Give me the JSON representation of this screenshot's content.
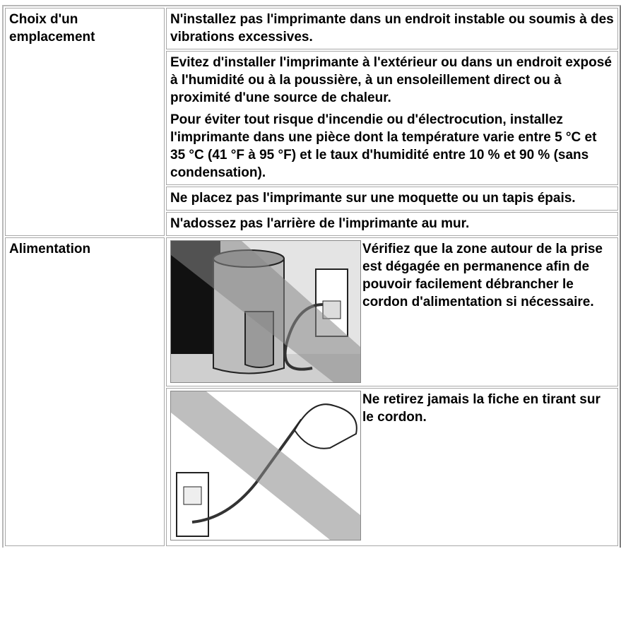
{
  "table": {
    "sections": [
      {
        "heading": "Choix d'un emplacement",
        "items": [
          {
            "paragraphs": [
              "N'installez pas l'imprimante dans un endroit instable ou soumis à des vibrations excessives."
            ]
          },
          {
            "paragraphs": [
              "Evitez d'installer l'imprimante à l'extérieur ou dans un endroit exposé à l'humidité ou à la poussière, à un ensoleillement direct ou à proximité d'une source de chaleur.",
              "Pour éviter tout risque d'incendie ou d'électrocution, installez l'imprimante dans une pièce dont la température varie entre 5 °C et 35 °C (41 °F à 95 °F) et le taux d'humidité entre 10 % et 90 % (sans condensation)."
            ]
          },
          {
            "paragraphs": [
              "Ne placez pas l'imprimante sur une moquette ou un tapis épais."
            ]
          },
          {
            "paragraphs": [
              "N'adossez pas l'arrière de l'imprimante au mur."
            ]
          }
        ]
      },
      {
        "heading": "Alimentation",
        "items": [
          {
            "paragraphs": [
              "Vérifiez que la zone autour de la prise est dégagée en permanence afin de pouvoir facilement débrancher le cordon d'alimentation si nécessaire."
            ]
          },
          {
            "paragraphs": [
              "Ne retirez jamais la fiche en tirant sur le cordon."
            ]
          }
        ]
      }
    ]
  }
}
